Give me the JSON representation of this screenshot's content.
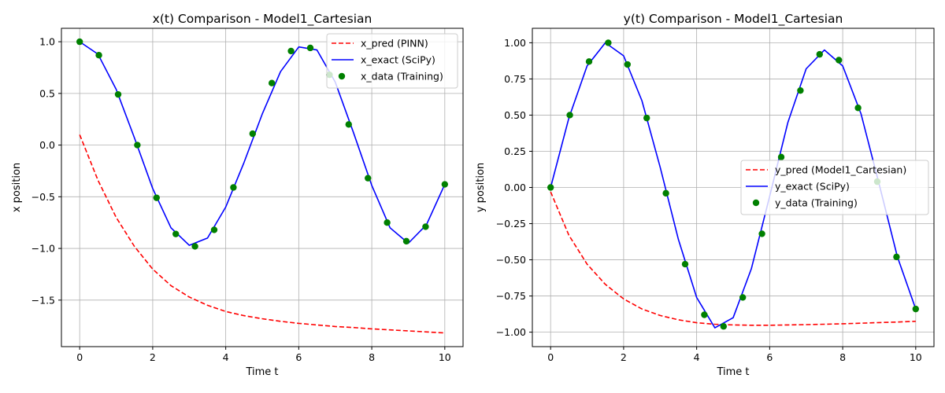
{
  "chart_data": [
    {
      "type": "line",
      "title": "x(t) Comparison - Model1_Cartesian",
      "xlabel": "Time t",
      "ylabel": "x position",
      "xlim": [
        -0.5,
        10.5
      ],
      "ylim": [
        -1.95,
        1.13
      ],
      "xticks": [
        0,
        2,
        4,
        6,
        8,
        10
      ],
      "xtick_labels": [
        "0",
        "2",
        "4",
        "6",
        "8",
        "10"
      ],
      "yticks": [
        -1.5,
        -1.0,
        -0.5,
        0.0,
        0.5,
        1.0
      ],
      "ytick_labels": [
        "−1.5",
        "−1.0",
        "−0.5",
        "0.0",
        "0.5",
        "1.0"
      ],
      "grid": true,
      "legend_position": "top-right",
      "series": [
        {
          "name": "x_pred (PINN)",
          "kind": "line-dashed",
          "color": "#ff0000",
          "x": [
            0,
            0.5,
            1,
            1.5,
            2,
            2.5,
            3,
            3.5,
            4,
            4.5,
            5,
            5.5,
            6,
            6.5,
            7,
            7.5,
            8,
            8.5,
            9,
            9.5,
            10
          ],
          "y": [
            0.1,
            -0.34,
            -0.7,
            -0.98,
            -1.2,
            -1.36,
            -1.47,
            -1.55,
            -1.61,
            -1.65,
            -1.68,
            -1.705,
            -1.725,
            -1.74,
            -1.755,
            -1.765,
            -1.778,
            -1.788,
            -1.798,
            -1.808,
            -1.818
          ]
        },
        {
          "name": "x_exact (SciPy)",
          "kind": "line",
          "color": "#0000ff",
          "x": [
            0,
            0.5,
            1,
            1.5,
            2,
            2.5,
            3,
            3.5,
            4,
            4.5,
            5,
            5.5,
            6,
            6.5,
            7,
            7.5,
            8,
            8.5,
            9,
            9.5,
            10
          ],
          "y": [
            1.0,
            0.88,
            0.54,
            0.07,
            -0.42,
            -0.8,
            -0.97,
            -0.9,
            -0.6,
            -0.17,
            0.3,
            0.71,
            0.95,
            0.92,
            0.61,
            0.12,
            -0.39,
            -0.8,
            -0.95,
            -0.77,
            -0.38
          ]
        },
        {
          "name": "x_data (Training)",
          "kind": "scatter",
          "color": "#008000",
          "x": [
            0,
            0.526,
            1.053,
            1.579,
            2.105,
            2.632,
            3.158,
            3.684,
            4.211,
            4.737,
            5.263,
            5.789,
            6.316,
            6.842,
            7.368,
            7.895,
            8.421,
            8.947,
            9.474,
            10
          ],
          "y": [
            1.0,
            0.87,
            0.49,
            0.0,
            -0.51,
            -0.86,
            -0.98,
            -0.82,
            -0.41,
            0.11,
            0.6,
            0.91,
            0.94,
            0.68,
            0.2,
            -0.32,
            -0.75,
            -0.93,
            -0.79,
            -0.38
          ]
        }
      ]
    },
    {
      "type": "line",
      "title": "y(t) Comparison - Model1_Cartesian",
      "xlabel": "Time t",
      "ylabel": "y position",
      "xlim": [
        -0.5,
        10.5
      ],
      "ylim": [
        -1.1,
        1.1
      ],
      "xticks": [
        0,
        2,
        4,
        6,
        8,
        10
      ],
      "xtick_labels": [
        "0",
        "2",
        "4",
        "6",
        "8",
        "10"
      ],
      "yticks": [
        -1.0,
        -0.75,
        -0.5,
        -0.25,
        0.0,
        0.25,
        0.5,
        0.75,
        1.0
      ],
      "ytick_labels": [
        "−1.00",
        "−0.75",
        "−0.50",
        "−0.25",
        "0.00",
        "0.25",
        "0.50",
        "0.75",
        "1.00"
      ],
      "grid": true,
      "legend_position": "center-right",
      "series": [
        {
          "name": "y_pred (Model1_Cartesian)",
          "kind": "line-dashed",
          "color": "#ff0000",
          "x": [
            0,
            0.5,
            1,
            1.5,
            2,
            2.5,
            3,
            3.5,
            4,
            4.5,
            5,
            5.5,
            6,
            6.5,
            7,
            7.5,
            8,
            8.5,
            9,
            9.5,
            10
          ],
          "y": [
            -0.03,
            -0.33,
            -0.53,
            -0.67,
            -0.77,
            -0.84,
            -0.885,
            -0.915,
            -0.935,
            -0.945,
            -0.95,
            -0.952,
            -0.952,
            -0.95,
            -0.948,
            -0.945,
            -0.942,
            -0.938,
            -0.934,
            -0.93,
            -0.925
          ]
        },
        {
          "name": "y_exact (SciPy)",
          "kind": "line",
          "color": "#0000ff",
          "x": [
            0,
            0.5,
            1,
            1.5,
            2,
            2.5,
            3,
            3.5,
            4,
            4.5,
            5,
            5.5,
            6,
            6.5,
            7,
            7.5,
            8,
            8.5,
            9,
            9.5,
            10
          ],
          "y": [
            0.0,
            0.48,
            0.84,
            1.0,
            0.91,
            0.6,
            0.14,
            -0.36,
            -0.76,
            -0.97,
            -0.9,
            -0.56,
            -0.06,
            0.45,
            0.82,
            0.95,
            0.84,
            0.51,
            0.02,
            -0.48,
            -0.84
          ]
        },
        {
          "name": "y_data (Training)",
          "kind": "scatter",
          "color": "#008000",
          "x": [
            0,
            0.526,
            1.053,
            1.579,
            2.105,
            2.632,
            3.158,
            3.684,
            4.211,
            4.737,
            5.263,
            5.789,
            6.316,
            6.842,
            7.368,
            7.895,
            8.421,
            8.947,
            9.474,
            10
          ],
          "y": [
            0.0,
            0.5,
            0.87,
            1.0,
            0.85,
            0.48,
            -0.04,
            -0.53,
            -0.88,
            -0.96,
            -0.76,
            -0.32,
            0.21,
            0.67,
            0.92,
            0.88,
            0.55,
            0.04,
            -0.48,
            -0.84
          ]
        }
      ]
    }
  ]
}
